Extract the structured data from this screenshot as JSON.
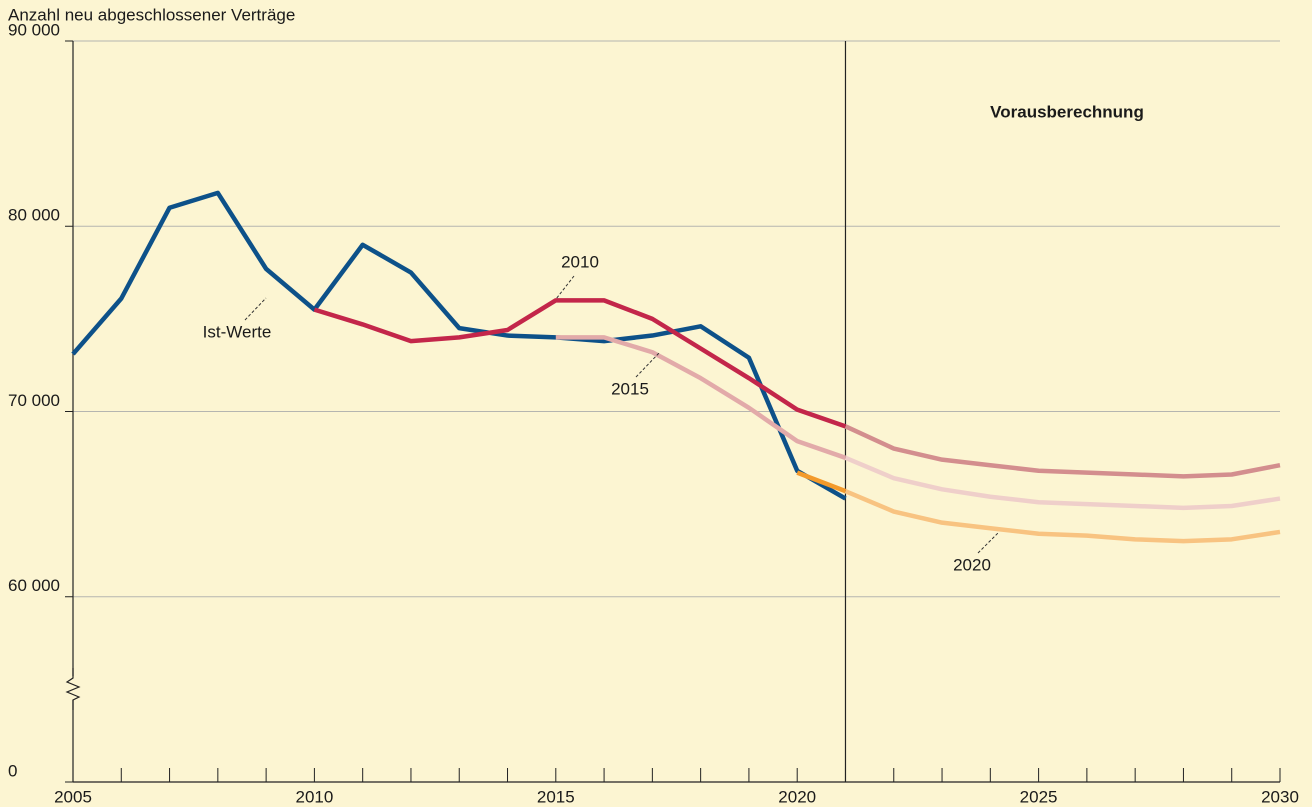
{
  "chart_data": {
    "type": "line",
    "y_label": "Anzahl neu abgeschlossener Verträge",
    "annotation": "Vorausberechnung",
    "x": [
      2005,
      2006,
      2007,
      2008,
      2009,
      2010,
      2011,
      2012,
      2013,
      2014,
      2015,
      2016,
      2017,
      2018,
      2019,
      2020,
      2021,
      2022,
      2023,
      2024,
      2025,
      2026,
      2027,
      2028,
      2029,
      2030
    ],
    "series": [
      {
        "name": "Ist-Werte",
        "color": "#0d5189",
        "forecast_color": "#0d5189",
        "values": [
          73100,
          76100,
          81000,
          81800,
          77700,
          75500,
          79000,
          77500,
          74500,
          74100,
          74000,
          73800,
          74100,
          74600,
          72900,
          66800,
          65300,
          null,
          null,
          null,
          null,
          null,
          null,
          null,
          null,
          null
        ]
      },
      {
        "name": "2010",
        "color": "#c3264a",
        "forecast_color": "#d38e8e",
        "values": [
          null,
          null,
          null,
          null,
          null,
          75500,
          74700,
          73800,
          74000,
          74400,
          76000,
          76000,
          75000,
          73400,
          71800,
          70100,
          69200,
          68000,
          67400,
          67100,
          66800,
          66700,
          66600,
          66500,
          66600,
          67100
        ]
      },
      {
        "name": "2015",
        "color": "#e2aaa9",
        "forecast_color": "#efcfca",
        "values": [
          null,
          null,
          null,
          null,
          null,
          null,
          null,
          null,
          null,
          null,
          74000,
          74000,
          73200,
          71800,
          70200,
          68400,
          67500,
          66400,
          65800,
          65400,
          65100,
          65000,
          64900,
          64800,
          64900,
          65300
        ]
      },
      {
        "name": "2020",
        "color": "#f39a2b",
        "forecast_color": "#f8c381",
        "values": [
          null,
          null,
          null,
          null,
          null,
          null,
          null,
          null,
          null,
          null,
          null,
          null,
          null,
          null,
          null,
          66700,
          65700,
          64600,
          64000,
          63700,
          63400,
          63300,
          63100,
          63000,
          63100,
          63500
        ]
      }
    ],
    "forecast_start": 2021,
    "xlim": [
      2005,
      2030
    ],
    "xticks": [
      2005,
      2010,
      2015,
      2020,
      2025,
      2030
    ],
    "xminorticks": [
      2006,
      2007,
      2008,
      2009,
      2011,
      2012,
      2013,
      2014,
      2016,
      2017,
      2018,
      2019,
      2021,
      2022,
      2023,
      2024,
      2026,
      2027,
      2028,
      2029
    ],
    "ylim": [
      0,
      90000
    ],
    "ybreak": [
      0,
      50000
    ],
    "yticks": [
      0,
      {
        "value": 60000,
        "label": "60 000"
      },
      {
        "value": 70000,
        "label": "70 000"
      },
      {
        "value": 80000,
        "label": "80 000"
      },
      {
        "value": 90000,
        "label": "90 000"
      }
    ],
    "grid": true
  }
}
